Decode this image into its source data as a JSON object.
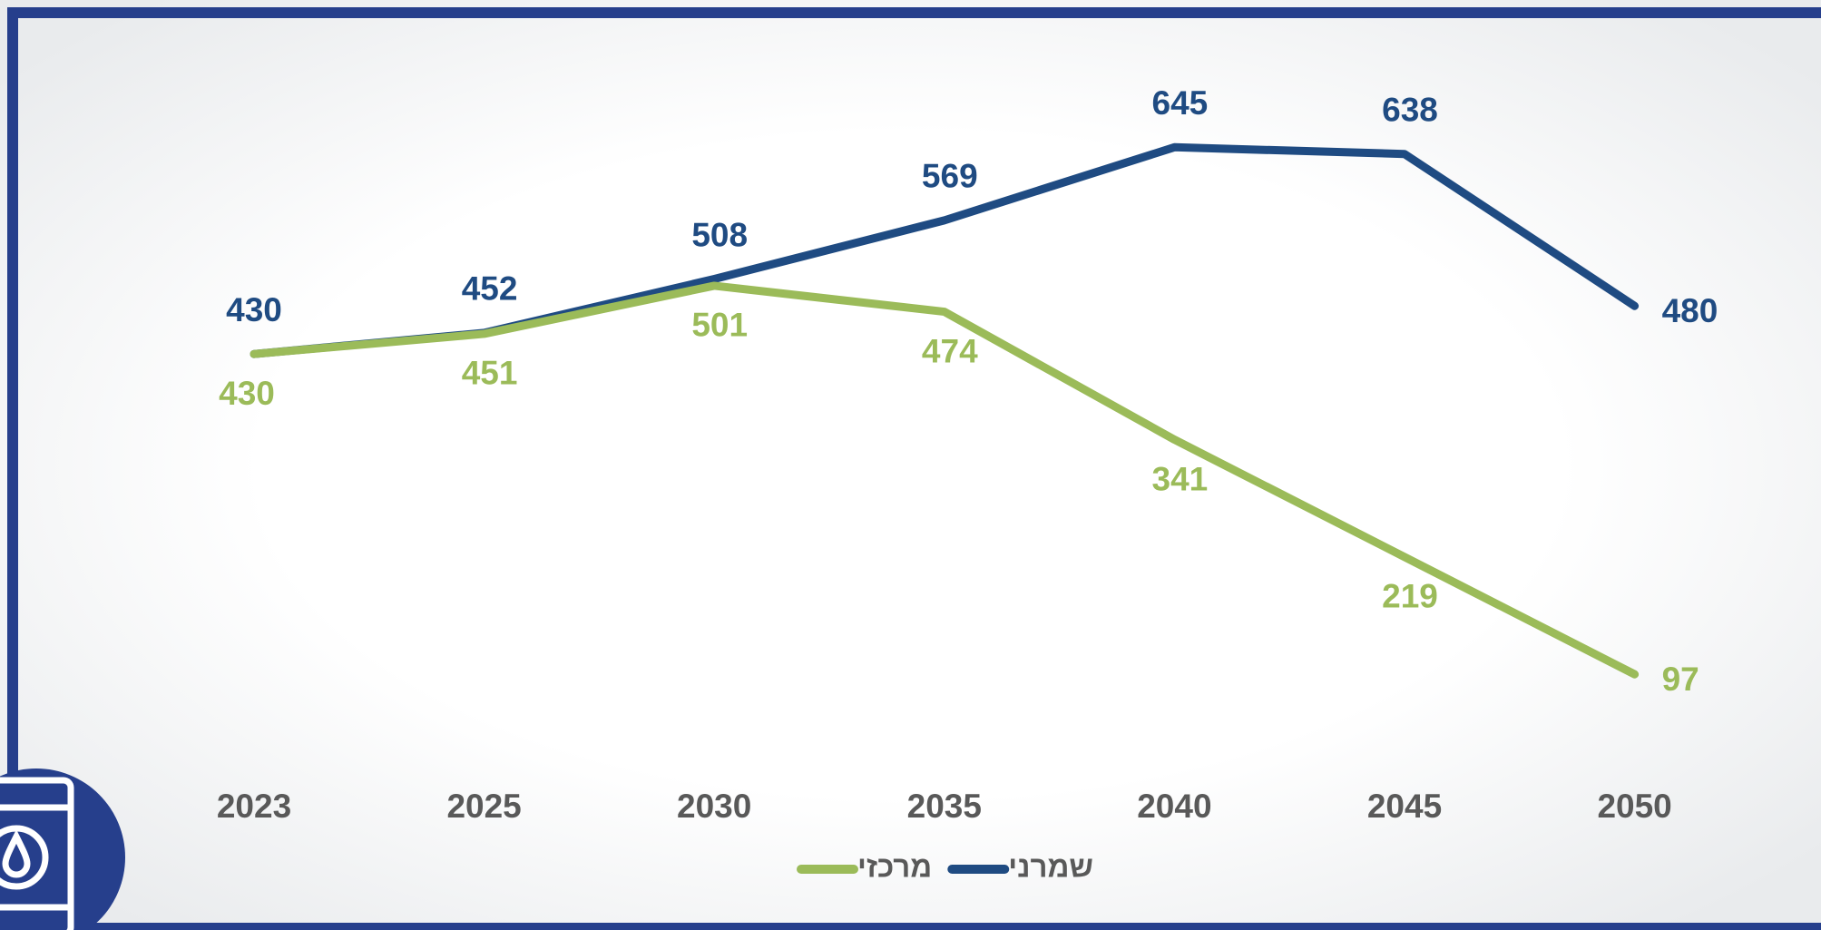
{
  "chart_data": {
    "type": "line",
    "categories": [
      "2023",
      "2025",
      "2030",
      "2035",
      "2040",
      "2045",
      "2050"
    ],
    "series": [
      {
        "name": "שמרני",
        "color": "#1f4b82",
        "values": [
          430,
          452,
          508,
          569,
          645,
          638,
          480
        ]
      },
      {
        "name": "מרכזי",
        "color": "#9bbb59",
        "values": [
          430,
          451,
          501,
          474,
          341,
          219,
          97
        ]
      }
    ],
    "ylim": [
      0,
      700
    ]
  }
}
